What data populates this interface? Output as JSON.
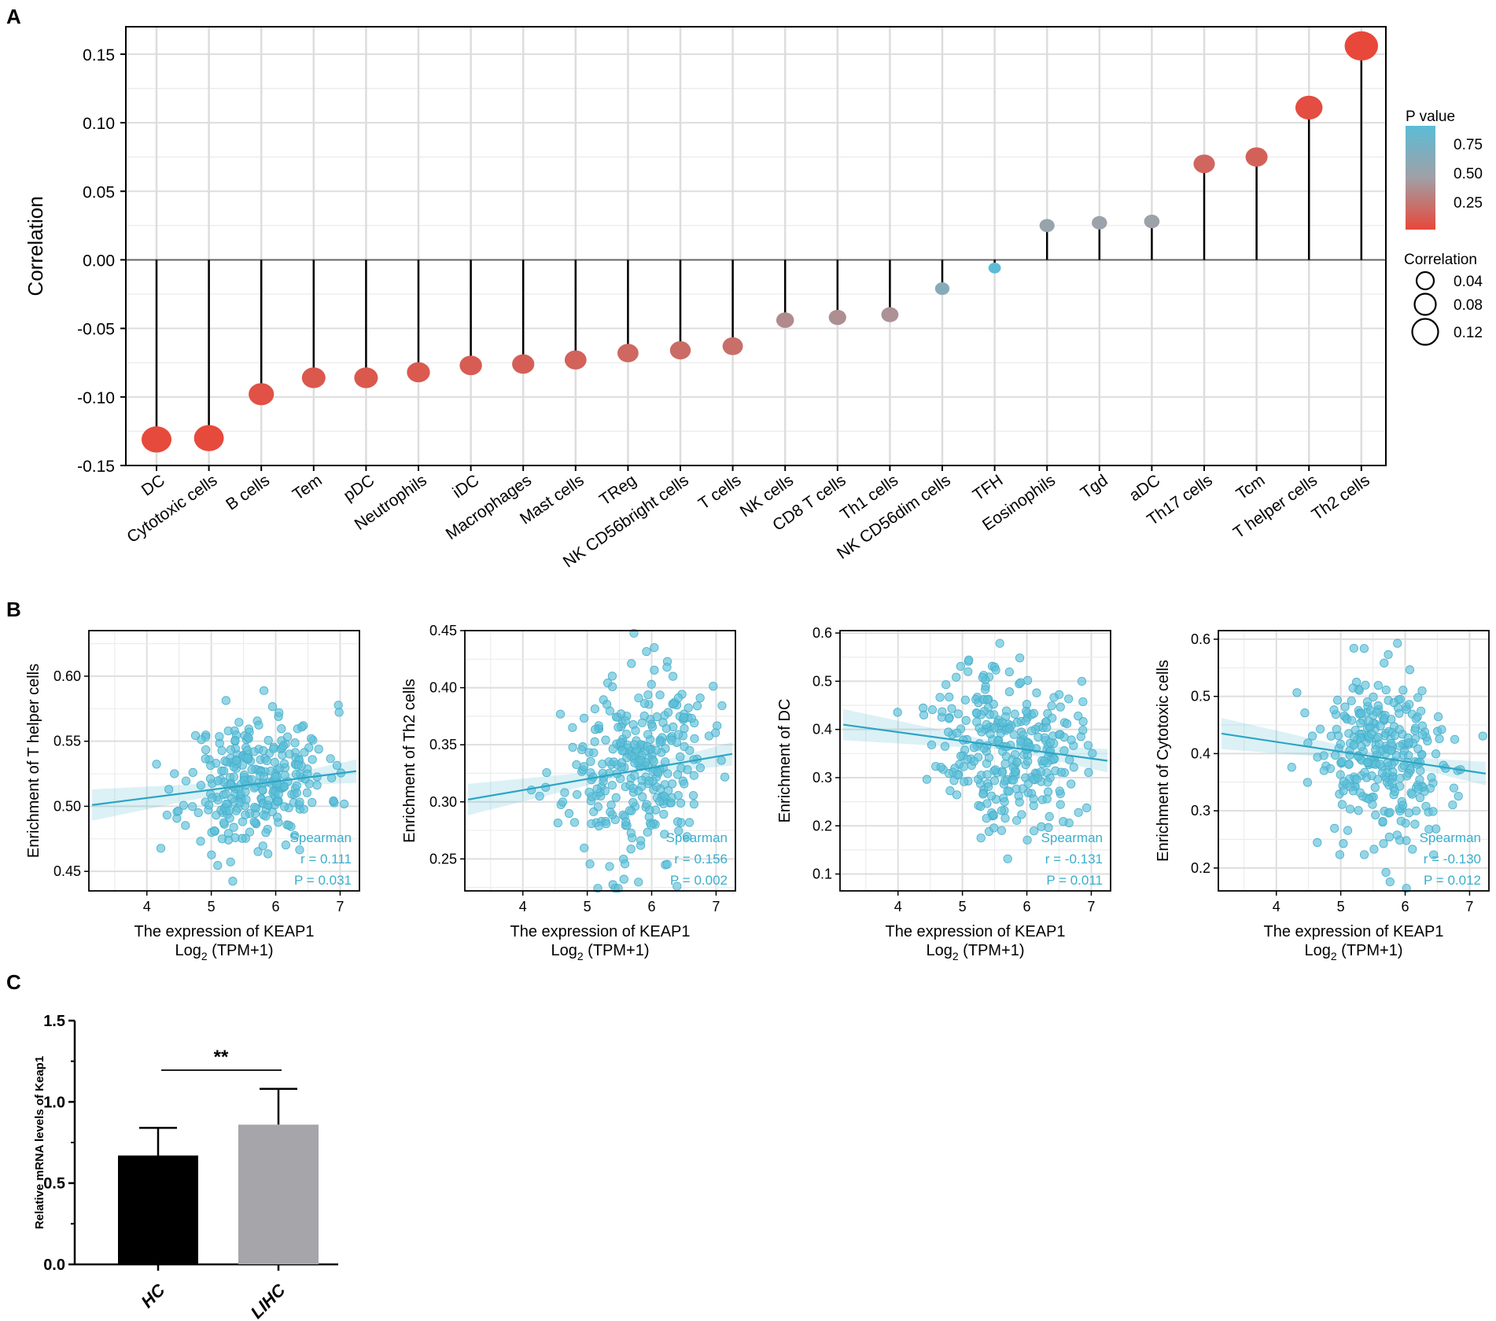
{
  "panel_labels": {
    "a": "A",
    "b": "B",
    "c": "C"
  },
  "colors": {
    "high_p": "#5bbcd6",
    "mid_p": "#a0a0a6",
    "low_p": "#e8483a",
    "scatter": "#5bc0d8",
    "line": "#2ba5c4",
    "bar_hc": "#000000",
    "bar_lihc": "#a6a6aa"
  },
  "chart_data": [
    {
      "id": "A",
      "type": "scatter",
      "title": "",
      "ylabel": "Correlation",
      "xlabel": "",
      "ylim": [
        -0.15,
        0.17
      ],
      "yticks": [
        -0.15,
        -0.1,
        -0.05,
        0.0,
        0.05,
        0.1,
        0.15
      ],
      "ytick_labels": [
        "-0.15",
        "-0.10",
        "-0.05",
        "0.00",
        "0.05",
        "0.10",
        "0.15"
      ],
      "categories": [
        "DC",
        "Cytotoxic cells",
        "B cells",
        "Tem",
        "pDC",
        "Neutrophils",
        "iDC",
        "Macrophages",
        "Mast cells",
        "TReg",
        "NK CD56bright cells",
        "T cells",
        "NK cells",
        "CD8 T cells",
        "Th1 cells",
        "NK CD56dim cells",
        "TFH",
        "Eosinophils",
        "Tgd",
        "aDC",
        "Th17 cells",
        "Tcm",
        "T helper cells",
        "Th2 cells"
      ],
      "correlation": [
        -0.131,
        -0.13,
        -0.098,
        -0.086,
        -0.086,
        -0.082,
        -0.077,
        -0.076,
        -0.073,
        -0.068,
        -0.066,
        -0.063,
        -0.044,
        -0.042,
        -0.04,
        -0.021,
        -0.006,
        0.025,
        0.027,
        0.028,
        0.07,
        0.075,
        0.111,
        0.156
      ],
      "p_value": [
        0.011,
        0.012,
        0.05,
        0.09,
        0.09,
        0.1,
        0.12,
        0.13,
        0.15,
        0.18,
        0.2,
        0.22,
        0.38,
        0.4,
        0.42,
        0.65,
        0.9,
        0.55,
        0.53,
        0.52,
        0.17,
        0.14,
        0.031,
        0.002
      ],
      "legend_pvalue": {
        "title": "P value",
        "labels": [
          "0.75",
          "0.50",
          "0.25"
        ]
      },
      "legend_correlation": {
        "title": "Correlation",
        "labels": [
          "0.04",
          "0.08",
          "0.12"
        ]
      }
    },
    {
      "id": "B1",
      "type": "scatter",
      "xlabel": "The expression of KEAP1",
      "xlabel2": "Log",
      "xlabel2_sub": "2",
      "xlabel2_rest": " (TPM+1)",
      "ylabel": "Enrichment of T helper cells",
      "xlim": [
        3.1,
        7.3
      ],
      "ylim": [
        0.435,
        0.635
      ],
      "xticks": [
        "4",
        "5",
        "6",
        "7"
      ],
      "yticks": [
        "0.45",
        "0.50",
        "0.55",
        "0.60"
      ],
      "ytick_values": [
        0.45,
        0.5,
        0.55,
        0.6
      ],
      "fit": {
        "x0": 3.15,
        "y0": 0.501,
        "x1": 7.25,
        "y1": 0.527
      },
      "center": [
        5.7,
        0.52
      ],
      "spread": [
        0.55,
        0.025
      ],
      "n": 300,
      "seed": 11,
      "stat_method": "Spearman",
      "stat_r": "r = 0.111",
      "stat_p": "P = 0.031"
    },
    {
      "id": "B2",
      "type": "scatter",
      "xlabel": "The expression of KEAP1",
      "xlabel2": "Log",
      "xlabel2_sub": "2",
      "xlabel2_rest": " (TPM+1)",
      "ylabel": "Enrichment of Th2 cells",
      "xlim": [
        3.1,
        7.3
      ],
      "ylim": [
        0.222,
        0.45
      ],
      "xticks": [
        "4",
        "5",
        "6",
        "7"
      ],
      "yticks": [
        "0.25",
        "0.30",
        "0.35",
        "0.40",
        "0.45"
      ],
      "ytick_values": [
        0.25,
        0.3,
        0.35,
        0.4,
        0.45
      ],
      "fit": {
        "x0": 3.15,
        "y0": 0.302,
        "x1": 7.25,
        "y1": 0.342
      },
      "center": [
        5.75,
        0.33
      ],
      "spread": [
        0.55,
        0.04
      ],
      "n": 300,
      "seed": 23,
      "stat_method": "Spearman",
      "stat_r": "r = 0.156",
      "stat_p": "P = 0.002"
    },
    {
      "id": "B3",
      "type": "scatter",
      "xlabel": "The expression of KEAP1",
      "xlabel2": "Log",
      "xlabel2_sub": "2",
      "xlabel2_rest": " (TPM+1)",
      "ylabel": "Enrichment of DC",
      "xlim": [
        3.1,
        7.3
      ],
      "ylim": [
        0.065,
        0.605
      ],
      "xticks": [
        "4",
        "5",
        "6",
        "7"
      ],
      "yticks": [
        "0.1",
        "0.2",
        "0.3",
        "0.4",
        "0.5",
        "0.6"
      ],
      "ytick_values": [
        0.1,
        0.2,
        0.3,
        0.4,
        0.5,
        0.6
      ],
      "fit": {
        "x0": 3.15,
        "y0": 0.41,
        "x1": 7.25,
        "y1": 0.335
      },
      "center": [
        5.7,
        0.37
      ],
      "spread": [
        0.55,
        0.085
      ],
      "n": 300,
      "seed": 37,
      "stat_method": "Spearman",
      "stat_r": "r = -0.131",
      "stat_p": "P = 0.011"
    },
    {
      "id": "B4",
      "type": "scatter",
      "xlabel": "The expression of KEAP1",
      "xlabel2": "Log",
      "xlabel2_sub": "2",
      "xlabel2_rest": " (TPM+1)",
      "ylabel": "Enrichment of Cytotoxic cells",
      "xlim": [
        3.1,
        7.3
      ],
      "ylim": [
        0.16,
        0.615
      ],
      "xticks": [
        "4",
        "5",
        "6",
        "7"
      ],
      "yticks": [
        "0.2",
        "0.3",
        "0.4",
        "0.5",
        "0.6"
      ],
      "ytick_values": [
        0.2,
        0.3,
        0.4,
        0.5,
        0.6
      ],
      "fit": {
        "x0": 3.15,
        "y0": 0.435,
        "x1": 7.25,
        "y1": 0.365
      },
      "center": [
        5.7,
        0.39
      ],
      "spread": [
        0.55,
        0.075
      ],
      "n": 300,
      "seed": 53,
      "stat_method": "Spearman",
      "stat_r": "r = -0.130",
      "stat_p": "P = 0.012"
    },
    {
      "id": "C",
      "type": "bar",
      "categories": [
        "HC",
        "LIHC"
      ],
      "values": [
        0.67,
        0.86
      ],
      "error_upper": [
        0.84,
        1.08
      ],
      "ylabel": "Relative mRNA levels of Keap1",
      "ylim": [
        0,
        1.5
      ],
      "yticks": [
        "0.0",
        "0.5",
        "1.0",
        "1.5"
      ],
      "ytick_values": [
        0.0,
        0.5,
        1.0,
        1.5
      ],
      "significance": "**"
    }
  ]
}
